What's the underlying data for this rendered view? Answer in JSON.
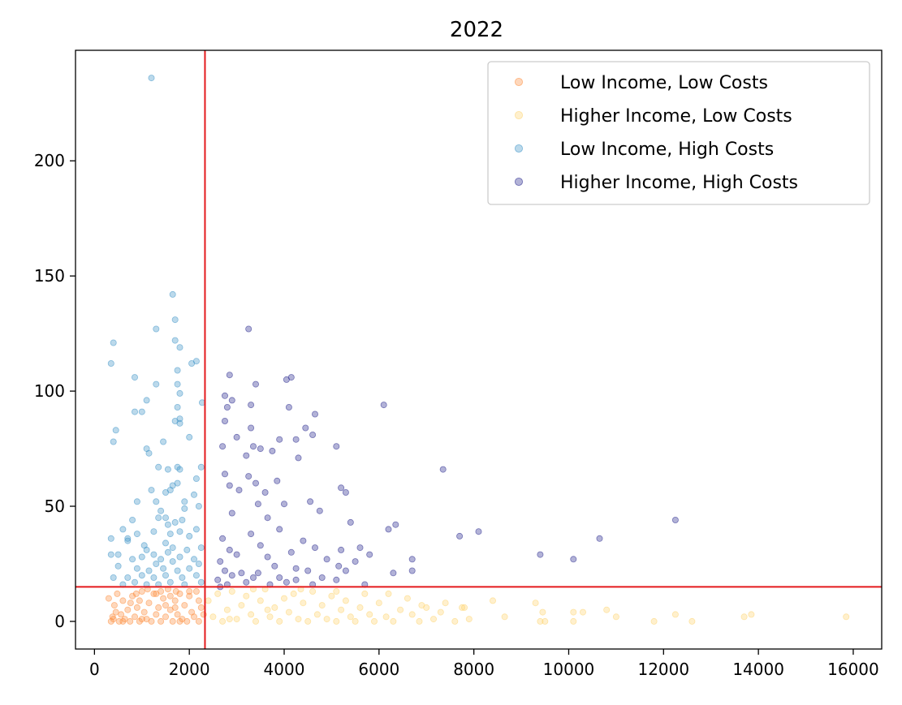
{
  "chart_data": {
    "type": "scatter",
    "title": "2022",
    "xlabel": "",
    "ylabel": "",
    "xlim": [
      -400,
      16600
    ],
    "ylim": [
      -12,
      248
    ],
    "xticks": [
      0,
      2000,
      4000,
      6000,
      8000,
      10000,
      12000,
      14000,
      16000
    ],
    "yticks": [
      0,
      50,
      100,
      150,
      200
    ],
    "grid": false,
    "legend_position": "top-right",
    "reference_lines": {
      "vertical_x": 2330,
      "horizontal_y": 15,
      "color": "#e41a1c"
    },
    "series": [
      {
        "name": "Low Income, Low Costs",
        "color": "#fd8d3c",
        "points": [
          [
            300,
            10
          ],
          [
            350,
            0
          ],
          [
            380,
            2
          ],
          [
            420,
            7
          ],
          [
            450,
            4
          ],
          [
            480,
            12
          ],
          [
            520,
            0
          ],
          [
            560,
            3
          ],
          [
            600,
            9
          ],
          [
            640,
            1
          ],
          [
            700,
            5
          ],
          [
            750,
            0
          ],
          [
            800,
            11
          ],
          [
            850,
            2
          ],
          [
            900,
            6
          ],
          [
            950,
            0
          ],
          [
            1000,
            13
          ],
          [
            1050,
            4
          ],
          [
            1100,
            1
          ],
          [
            1150,
            8
          ],
          [
            1200,
            0
          ],
          [
            1250,
            12
          ],
          [
            1300,
            3
          ],
          [
            1350,
            6
          ],
          [
            1400,
            0
          ],
          [
            1450,
            10
          ],
          [
            1500,
            2
          ],
          [
            1550,
            14
          ],
          [
            1600,
            5
          ],
          [
            1650,
            0
          ],
          [
            1700,
            9
          ],
          [
            1750,
            3
          ],
          [
            1800,
            12
          ],
          [
            1850,
            1
          ],
          [
            1900,
            7
          ],
          [
            1950,
            0
          ],
          [
            2000,
            11
          ],
          [
            2050,
            4
          ],
          [
            2100,
            2
          ],
          [
            2150,
            13
          ],
          [
            2200,
            0
          ],
          [
            2250,
            6
          ],
          [
            2300,
            3
          ],
          [
            1120,
            14
          ],
          [
            1720,
            13
          ],
          [
            880,
            12
          ],
          [
            1400,
            13
          ],
          [
            2000,
            13
          ],
          [
            1600,
            11
          ],
          [
            400,
            1
          ],
          [
            600,
            0
          ],
          [
            1800,
            0
          ],
          [
            1000,
            1
          ],
          [
            2200,
            9
          ],
          [
            1300,
            12
          ],
          [
            760,
            8
          ],
          [
            1500,
            7
          ],
          [
            1700,
            6
          ],
          [
            950,
            9
          ]
        ]
      },
      {
        "name": "Higher Income, Low Costs",
        "color": "#fed470",
        "points": [
          [
            2400,
            9
          ],
          [
            2500,
            2
          ],
          [
            2600,
            12
          ],
          [
            2700,
            0
          ],
          [
            2800,
            5
          ],
          [
            2900,
            13
          ],
          [
            3000,
            1
          ],
          [
            3100,
            7
          ],
          [
            3200,
            11
          ],
          [
            3300,
            3
          ],
          [
            3400,
            0
          ],
          [
            3500,
            9
          ],
          [
            3600,
            14
          ],
          [
            3700,
            2
          ],
          [
            3800,
            6
          ],
          [
            3900,
            0
          ],
          [
            4000,
            10
          ],
          [
            4100,
            4
          ],
          [
            4200,
            12
          ],
          [
            4300,
            1
          ],
          [
            4400,
            8
          ],
          [
            4500,
            0
          ],
          [
            4600,
            13
          ],
          [
            4700,
            3
          ],
          [
            4800,
            7
          ],
          [
            4900,
            1
          ],
          [
            5000,
            11
          ],
          [
            5100,
            0
          ],
          [
            5200,
            5
          ],
          [
            5300,
            9
          ],
          [
            5400,
            2
          ],
          [
            5500,
            0
          ],
          [
            5600,
            6
          ],
          [
            5700,
            12
          ],
          [
            5800,
            3
          ],
          [
            5900,
            0
          ],
          [
            6000,
            8
          ],
          [
            6150,
            2
          ],
          [
            6300,
            0
          ],
          [
            6450,
            5
          ],
          [
            6600,
            10
          ],
          [
            6700,
            3
          ],
          [
            6850,
            0
          ],
          [
            7000,
            6
          ],
          [
            7150,
            1
          ],
          [
            7300,
            4
          ],
          [
            7400,
            8
          ],
          [
            7600,
            0
          ],
          [
            7750,
            6
          ],
          [
            7900,
            1
          ],
          [
            8400,
            9
          ],
          [
            8650,
            2
          ],
          [
            9300,
            8
          ],
          [
            9400,
            0
          ],
          [
            9500,
            0
          ],
          [
            9450,
            4
          ],
          [
            10100,
            4
          ],
          [
            10100,
            0
          ],
          [
            10300,
            4
          ],
          [
            10800,
            5
          ],
          [
            11000,
            2
          ],
          [
            11800,
            0
          ],
          [
            12250,
            3
          ],
          [
            12600,
            0
          ],
          [
            13700,
            2
          ],
          [
            13850,
            3
          ],
          [
            15850,
            2
          ],
          [
            5100,
            13
          ],
          [
            4350,
            14
          ],
          [
            3350,
            14
          ],
          [
            6200,
            12
          ],
          [
            6900,
            7
          ],
          [
            7800,
            6
          ],
          [
            2850,
            1
          ],
          [
            3650,
            5
          ]
        ]
      },
      {
        "name": "Low Income, High Costs",
        "color": "#3b91c7",
        "points": [
          [
            1200,
            236
          ],
          [
            1650,
            142
          ],
          [
            1700,
            131
          ],
          [
            1300,
            127
          ],
          [
            1700,
            122
          ],
          [
            1800,
            119
          ],
          [
            400,
            121
          ],
          [
            350,
            112
          ],
          [
            2150,
            113
          ],
          [
            2050,
            112
          ],
          [
            1750,
            109
          ],
          [
            850,
            106
          ],
          [
            1750,
            103
          ],
          [
            1300,
            103
          ],
          [
            1800,
            99
          ],
          [
            1100,
            96
          ],
          [
            2270,
            95
          ],
          [
            1000,
            91
          ],
          [
            850,
            91
          ],
          [
            1750,
            93
          ],
          [
            1700,
            87
          ],
          [
            450,
            83
          ],
          [
            1800,
            88
          ],
          [
            1800,
            86
          ],
          [
            1450,
            78
          ],
          [
            400,
            78
          ],
          [
            2000,
            80
          ],
          [
            1100,
            75
          ],
          [
            1150,
            73
          ],
          [
            1750,
            67
          ],
          [
            1350,
            67
          ],
          [
            1550,
            66
          ],
          [
            1800,
            66
          ],
          [
            2250,
            67
          ],
          [
            2150,
            62
          ],
          [
            1750,
            60
          ],
          [
            1650,
            59
          ],
          [
            1500,
            56
          ],
          [
            1600,
            57
          ],
          [
            1200,
            57
          ],
          [
            1900,
            52
          ],
          [
            900,
            52
          ],
          [
            1300,
            52
          ],
          [
            1400,
            48
          ],
          [
            1900,
            49
          ],
          [
            2200,
            50
          ],
          [
            1350,
            45
          ],
          [
            1850,
            44
          ],
          [
            800,
            44
          ],
          [
            1550,
            42
          ],
          [
            1700,
            43
          ],
          [
            600,
            40
          ],
          [
            2150,
            40
          ],
          [
            900,
            38
          ],
          [
            1250,
            39
          ],
          [
            1800,
            39
          ],
          [
            2000,
            37
          ],
          [
            350,
            36
          ],
          [
            1500,
            34
          ],
          [
            1650,
            32
          ],
          [
            700,
            35
          ],
          [
            1100,
            31
          ],
          [
            1950,
            31
          ],
          [
            2250,
            32
          ],
          [
            500,
            29
          ],
          [
            350,
            29
          ],
          [
            1000,
            28
          ],
          [
            1250,
            29
          ],
          [
            1550,
            30
          ],
          [
            1800,
            28
          ],
          [
            2100,
            27
          ],
          [
            800,
            27
          ],
          [
            1300,
            25
          ],
          [
            1650,
            26
          ],
          [
            2200,
            25
          ],
          [
            500,
            24
          ],
          [
            900,
            23
          ],
          [
            1150,
            22
          ],
          [
            1450,
            23
          ],
          [
            1750,
            22
          ],
          [
            2000,
            23
          ],
          [
            400,
            19
          ],
          [
            700,
            19
          ],
          [
            1000,
            20
          ],
          [
            1250,
            19
          ],
          [
            1500,
            20
          ],
          [
            1850,
            19
          ],
          [
            2150,
            20
          ],
          [
            600,
            16
          ],
          [
            850,
            17
          ],
          [
            1100,
            16
          ],
          [
            1350,
            16
          ],
          [
            1600,
            17
          ],
          [
            1900,
            16
          ],
          [
            2250,
            17
          ],
          [
            1050,
            33
          ],
          [
            1500,
            45
          ],
          [
            2100,
            55
          ],
          [
            700,
            36
          ],
          [
            1600,
            38
          ],
          [
            1400,
            27
          ]
        ]
      },
      {
        "name": "Higher Income, High Costs",
        "color": "#23238b",
        "points": [
          [
            3250,
            127
          ],
          [
            2850,
            107
          ],
          [
            4150,
            106
          ],
          [
            4050,
            105
          ],
          [
            3400,
            103
          ],
          [
            2750,
            98
          ],
          [
            2900,
            96
          ],
          [
            3300,
            94
          ],
          [
            2800,
            93
          ],
          [
            4100,
            93
          ],
          [
            6100,
            94
          ],
          [
            4650,
            90
          ],
          [
            2750,
            87
          ],
          [
            3300,
            84
          ],
          [
            4450,
            84
          ],
          [
            4600,
            81
          ],
          [
            3000,
            80
          ],
          [
            3900,
            79
          ],
          [
            4250,
            79
          ],
          [
            2700,
            76
          ],
          [
            3350,
            76
          ],
          [
            3500,
            75
          ],
          [
            3750,
            74
          ],
          [
            4300,
            71
          ],
          [
            3200,
            72
          ],
          [
            7350,
            66
          ],
          [
            2750,
            64
          ],
          [
            3250,
            63
          ],
          [
            2850,
            59
          ],
          [
            3400,
            60
          ],
          [
            3850,
            61
          ],
          [
            3050,
            57
          ],
          [
            3600,
            56
          ],
          [
            4550,
            52
          ],
          [
            5100,
            76
          ],
          [
            5200,
            58
          ],
          [
            5300,
            56
          ],
          [
            3450,
            51
          ],
          [
            4000,
            51
          ],
          [
            4750,
            48
          ],
          [
            2900,
            47
          ],
          [
            3650,
            45
          ],
          [
            6350,
            42
          ],
          [
            5400,
            43
          ],
          [
            6200,
            40
          ],
          [
            7700,
            37
          ],
          [
            8100,
            39
          ],
          [
            3900,
            40
          ],
          [
            10650,
            36
          ],
          [
            12250,
            44
          ],
          [
            3300,
            38
          ],
          [
            2700,
            36
          ],
          [
            4400,
            35
          ],
          [
            5800,
            29
          ],
          [
            5600,
            32
          ],
          [
            6700,
            27
          ],
          [
            9400,
            29
          ],
          [
            10100,
            27
          ],
          [
            4650,
            32
          ],
          [
            5200,
            31
          ],
          [
            3500,
            33
          ],
          [
            2850,
            31
          ],
          [
            4150,
            30
          ],
          [
            3000,
            29
          ],
          [
            3650,
            28
          ],
          [
            4900,
            27
          ],
          [
            5500,
            26
          ],
          [
            2650,
            26
          ],
          [
            3800,
            24
          ],
          [
            4250,
            23
          ],
          [
            4500,
            22
          ],
          [
            5150,
            24
          ],
          [
            5300,
            22
          ],
          [
            6300,
            21
          ],
          [
            6700,
            22
          ],
          [
            2750,
            22
          ],
          [
            3100,
            21
          ],
          [
            3450,
            21
          ],
          [
            3900,
            19
          ],
          [
            4250,
            18
          ],
          [
            4800,
            19
          ],
          [
            5100,
            18
          ],
          [
            5700,
            16
          ],
          [
            2600,
            18
          ],
          [
            3200,
            17
          ],
          [
            3700,
            16
          ],
          [
            4600,
            16
          ],
          [
            2900,
            20
          ],
          [
            3350,
            19
          ],
          [
            4050,
            17
          ],
          [
            2650,
            15
          ],
          [
            2800,
            16
          ]
        ]
      }
    ]
  }
}
